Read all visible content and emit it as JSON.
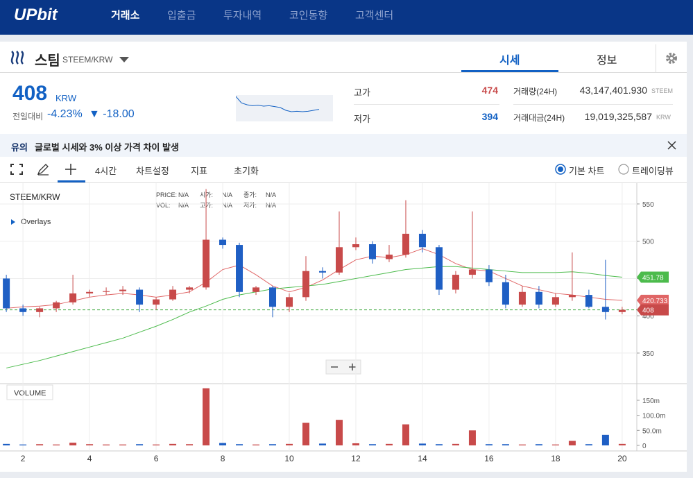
{
  "header": {
    "logo": "UPbit",
    "nav": [
      "거래소",
      "입출금",
      "투자내역",
      "코인동향",
      "고객센터"
    ]
  },
  "coin": {
    "name": "스팀",
    "pair": "STEEM/KRW",
    "tabs": [
      "시세",
      "정보"
    ]
  },
  "price": {
    "value": "408",
    "unit": "KRW",
    "change_label": "전일대비",
    "change_pct": "-4.23%",
    "change_amt": "▼ -18.00"
  },
  "sparkline": [
    470,
    456,
    452,
    450,
    451,
    449,
    450,
    448,
    446,
    440,
    437,
    438,
    437,
    438,
    440,
    442
  ],
  "stats": {
    "high": {
      "label": "고가",
      "value": "474"
    },
    "low": {
      "label": "저가",
      "value": "394"
    },
    "volume": {
      "label": "거래량(24H)",
      "value": "43,147,401.930",
      "unit": "STEEM"
    },
    "amount": {
      "label": "거래대금(24H)",
      "value": "19,019,325,587",
      "unit": "KRW"
    }
  },
  "notice": {
    "tag": "유의",
    "text": "글로벌 시세와 3% 이상 가격 차이 발생"
  },
  "toolbar": {
    "interval": "4시간",
    "settings": "차트설정",
    "indicators": "지표",
    "reset": "초기화",
    "basic": "기본 차트",
    "tradingview": "트레이딩뷰"
  },
  "chart_info": [
    [
      [
        "PRICE:",
        "N/A"
      ],
      [
        "시가:",
        "N/A"
      ],
      [
        "종가:",
        "N/A"
      ]
    ],
    [
      [
        "VOL:",
        "N/A"
      ],
      [
        "고가:",
        "N/A"
      ],
      [
        "저가:",
        "N/A"
      ]
    ]
  ],
  "chart_data": {
    "type": "candlestick",
    "title": "STEEM/KRW",
    "overlays": "Overlays",
    "up_color": "#c84a4a",
    "down_color": "#1f5fc4",
    "x": [
      1.5,
      2,
      2.5,
      3,
      3.5,
      4,
      4.5,
      5,
      5.5,
      6,
      6.5,
      7,
      7.5,
      8,
      8.5,
      9,
      9.5,
      10,
      10.5,
      11,
      11.5,
      12,
      12.5,
      13,
      13.5,
      14,
      14.5,
      15,
      15.5,
      16,
      16.5,
      17,
      17.5,
      18,
      18.5,
      19,
      19.5,
      20
    ],
    "candles": [
      [
        450,
        455,
        405,
        410
      ],
      [
        410,
        415,
        400,
        405
      ],
      [
        405,
        412,
        398,
        410
      ],
      [
        410,
        420,
        405,
        418
      ],
      [
        418,
        455,
        415,
        430
      ],
      [
        430,
        435,
        425,
        432
      ],
      [
        432,
        438,
        428,
        433
      ],
      [
        433,
        440,
        428,
        435
      ],
      [
        435,
        438,
        405,
        415
      ],
      [
        415,
        425,
        408,
        422
      ],
      [
        422,
        440,
        420,
        435
      ],
      [
        435,
        440,
        430,
        438
      ],
      [
        438,
        570,
        435,
        502
      ],
      [
        502,
        505,
        490,
        495
      ],
      [
        495,
        498,
        425,
        432
      ],
      [
        432,
        440,
        428,
        438
      ],
      [
        438,
        440,
        398,
        412
      ],
      [
        412,
        430,
        405,
        425
      ],
      [
        425,
        480,
        420,
        460
      ],
      [
        460,
        465,
        450,
        458
      ],
      [
        458,
        540,
        455,
        492
      ],
      [
        492,
        505,
        488,
        496
      ],
      [
        496,
        500,
        470,
        476
      ],
      [
        476,
        495,
        472,
        482
      ],
      [
        482,
        555,
        478,
        510
      ],
      [
        510,
        515,
        485,
        492
      ],
      [
        492,
        495,
        428,
        435
      ],
      [
        435,
        460,
        430,
        455
      ],
      [
        455,
        540,
        450,
        462
      ],
      [
        462,
        468,
        440,
        445
      ],
      [
        445,
        455,
        410,
        415
      ],
      [
        415,
        440,
        412,
        432
      ],
      [
        432,
        440,
        410,
        415
      ],
      [
        415,
        430,
        412,
        425
      ],
      [
        425,
        485,
        420,
        428
      ],
      [
        428,
        435,
        410,
        412
      ],
      [
        412,
        475,
        395,
        405
      ],
      [
        405,
        412,
        402,
        408
      ]
    ],
    "ma_lines": [
      {
        "color": "#e06666",
        "values": [
          410,
          412,
          413,
          415,
          420,
          425,
          428,
          430,
          428,
          425,
          428,
          432,
          445,
          462,
          468,
          455,
          440,
          432,
          438,
          448,
          462,
          475,
          480,
          478,
          482,
          490,
          482,
          470,
          462,
          460,
          450,
          440,
          435,
          430,
          428,
          425,
          422,
          420.733
        ]
      },
      {
        "color": "#4cbb4c",
        "values": [
          330,
          335,
          340,
          346,
          352,
          358,
          364,
          370,
          378,
          386,
          395,
          405,
          413,
          422,
          428,
          432,
          436,
          438,
          440,
          442,
          446,
          450,
          454,
          458,
          462,
          464,
          466,
          466,
          464,
          462,
          460,
          458,
          458,
          458,
          459,
          457,
          454,
          451.78
        ]
      }
    ],
    "current": 408,
    "xlim": [
      1.31,
      20.44
    ],
    "xticks": [
      2,
      4,
      6,
      8,
      10,
      12,
      14,
      16,
      18,
      20
    ],
    "ylim": [
      309,
      576
    ],
    "yticks": [
      350,
      400,
      450,
      500,
      550
    ],
    "volume": {
      "title": "VOLUME",
      "values": [
        5,
        3,
        4,
        3,
        9,
        4,
        3,
        3,
        4,
        3,
        5,
        4,
        190,
        8,
        4,
        3,
        4,
        5,
        75,
        6,
        85,
        7,
        4,
        5,
        70,
        6,
        4,
        5,
        50,
        4,
        4,
        3,
        4,
        3,
        15,
        4,
        35,
        5
      ],
      "ylim": [
        0,
        203
      ],
      "yticks": [
        {
          "value": 0,
          "label": "0"
        },
        {
          "value": 50,
          "label": "50.0m"
        },
        {
          "value": 100,
          "label": "100.0m"
        },
        {
          "value": 150,
          "label": "150m"
        }
      ]
    }
  }
}
